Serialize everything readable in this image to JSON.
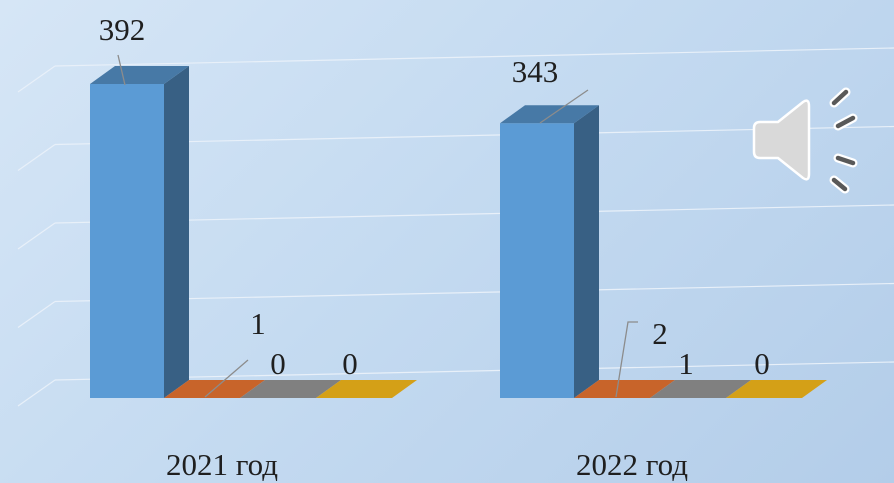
{
  "chart_data": {
    "type": "bar",
    "categories": [
      "2021 год",
      "2022 год"
    ],
    "series": [
      {
        "values": [
          392,
          343
        ],
        "color": "#5b9bd5",
        "label_color": "#1f1f1f"
      },
      {
        "values": [
          1,
          2
        ],
        "color": "#c8642a",
        "label_color": "#1f1f1f"
      },
      {
        "values": [
          0,
          1
        ],
        "color": "#808080",
        "label_color": "#c00000"
      },
      {
        "values": [
          0,
          0
        ],
        "color": "#d4a017",
        "label_color": "#1f1f1f"
      }
    ],
    "ylim": [
      0,
      400
    ],
    "gridlines": [
      0,
      100,
      200,
      300,
      400
    ],
    "grid": true,
    "legend": "none",
    "three_d": true
  },
  "icons": {
    "audio": "speaker-icon"
  }
}
